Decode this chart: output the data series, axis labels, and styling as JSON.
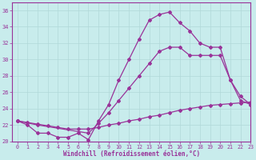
{
  "xlabel": "Windchill (Refroidissement éolien,°C)",
  "x_ticks": [
    0,
    1,
    2,
    3,
    4,
    5,
    6,
    7,
    8,
    9,
    10,
    11,
    12,
    13,
    14,
    15,
    16,
    17,
    18,
    19,
    20,
    21,
    22,
    23
  ],
  "ylim": [
    20,
    37
  ],
  "xlim": [
    -0.5,
    23
  ],
  "yticks": [
    20,
    22,
    24,
    26,
    28,
    30,
    32,
    34,
    36
  ],
  "background_color": "#c8ecec",
  "line_color": "#993399",
  "grid_color": "#b0d8d8",
  "curve1": {
    "x": [
      0,
      1,
      2,
      3,
      4,
      5,
      6,
      7,
      8,
      9,
      10,
      11,
      12,
      13,
      14,
      15,
      16,
      17,
      18,
      19,
      20,
      21,
      22,
      23
    ],
    "y": [
      22.5,
      22,
      21,
      21,
      20.5,
      20.5,
      21,
      20.2,
      22.5,
      24.5,
      27.5,
      30,
      32.5,
      34.8,
      35.5,
      35.8,
      34.5,
      33.5,
      32,
      31.5,
      31.5,
      27.5,
      25,
      24.5
    ]
  },
  "curve2": {
    "x": [
      0,
      2,
      7,
      8,
      9,
      10,
      11,
      12,
      13,
      14,
      15,
      16,
      17,
      18,
      19,
      20,
      21,
      22,
      23
    ],
    "y": [
      22.5,
      22.0,
      21.0,
      22.2,
      23.5,
      25.0,
      26.5,
      28.0,
      29.5,
      31.0,
      31.5,
      31.5,
      30.5,
      30.5,
      30.5,
      30.5,
      27.5,
      25.5,
      24.5
    ]
  },
  "curve3": {
    "x": [
      0,
      1,
      2,
      3,
      4,
      5,
      6,
      7,
      8,
      9,
      10,
      11,
      12,
      13,
      14,
      15,
      16,
      17,
      18,
      19,
      20,
      21,
      22,
      23
    ],
    "y": [
      22.5,
      22.3,
      22.1,
      21.9,
      21.7,
      21.5,
      21.5,
      21.5,
      21.7,
      22.0,
      22.2,
      22.5,
      22.7,
      23.0,
      23.2,
      23.5,
      23.8,
      24.0,
      24.2,
      24.4,
      24.5,
      24.6,
      24.7,
      24.8
    ]
  }
}
